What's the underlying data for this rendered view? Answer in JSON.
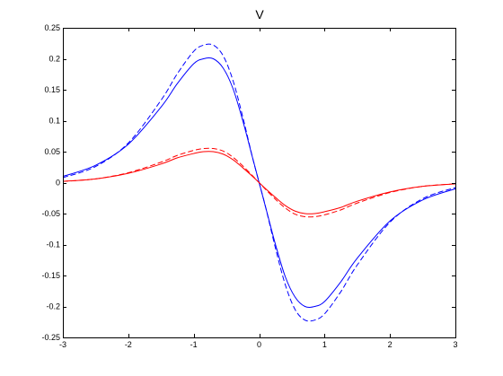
{
  "chart_data": {
    "type": "line",
    "title": "V",
    "xlabel": "",
    "ylabel": "",
    "xlim": [
      -3,
      3
    ],
    "ylim": [
      -0.25,
      0.25
    ],
    "grid": false,
    "xticks": [
      -3,
      -2,
      -1,
      0,
      1,
      2,
      3
    ],
    "xtick_labels": [
      "-3",
      "-2",
      "-1",
      "0",
      "1",
      "2",
      "3"
    ],
    "yticks": [
      0.25,
      0.2,
      0.15,
      0.1,
      0.05,
      0,
      -0.05,
      -0.1,
      -0.15,
      -0.2,
      -0.25
    ],
    "ytick_labels": [
      "0.25",
      "0.2",
      "0.15",
      "0.1",
      "0.05",
      "0",
      "-0.05",
      "-0.1",
      "-0.15",
      "-0.2",
      "-0.25"
    ],
    "x": [
      -3,
      -2.5,
      -2,
      -1.5,
      -1.25,
      -1,
      -0.85,
      -0.7,
      -0.55,
      -0.4,
      -0.25,
      -0.1,
      0,
      0.1,
      0.25,
      0.4,
      0.55,
      0.7,
      0.85,
      1,
      1.25,
      1.5,
      2,
      2.5,
      3
    ],
    "series": [
      {
        "color": "#0000ff",
        "style": "solid",
        "values": [
          0.01,
          0.028,
          0.062,
          0.122,
          0.16,
          0.192,
          0.2,
          0.2,
          0.185,
          0.152,
          0.1,
          0.04,
          0,
          -0.04,
          -0.1,
          -0.152,
          -0.185,
          -0.2,
          -0.2,
          -0.192,
          -0.16,
          -0.122,
          -0.062,
          -0.028,
          -0.01
        ]
      },
      {
        "color": "#0000ff",
        "style": "dashed",
        "values": [
          0.008,
          0.026,
          0.064,
          0.133,
          0.176,
          0.212,
          0.222,
          0.222,
          0.205,
          0.165,
          0.106,
          0.04,
          0,
          -0.04,
          -0.106,
          -0.165,
          -0.205,
          -0.222,
          -0.222,
          -0.212,
          -0.176,
          -0.133,
          -0.064,
          -0.026,
          -0.008
        ]
      },
      {
        "color": "#ff0000",
        "style": "solid",
        "values": [
          0.002,
          0.006,
          0.015,
          0.03,
          0.04,
          0.047,
          0.05,
          0.05,
          0.046,
          0.037,
          0.024,
          0.01,
          0,
          -0.01,
          -0.024,
          -0.037,
          -0.046,
          -0.05,
          -0.05,
          -0.047,
          -0.04,
          -0.03,
          -0.015,
          -0.006,
          -0.002
        ]
      },
      {
        "color": "#ff0000",
        "style": "dashed",
        "values": [
          0.002,
          0.006,
          0.016,
          0.033,
          0.044,
          0.052,
          0.055,
          0.055,
          0.051,
          0.041,
          0.027,
          0.011,
          0,
          -0.011,
          -0.027,
          -0.041,
          -0.051,
          -0.055,
          -0.055,
          -0.052,
          -0.044,
          -0.033,
          -0.016,
          -0.006,
          -0.002
        ]
      }
    ]
  }
}
